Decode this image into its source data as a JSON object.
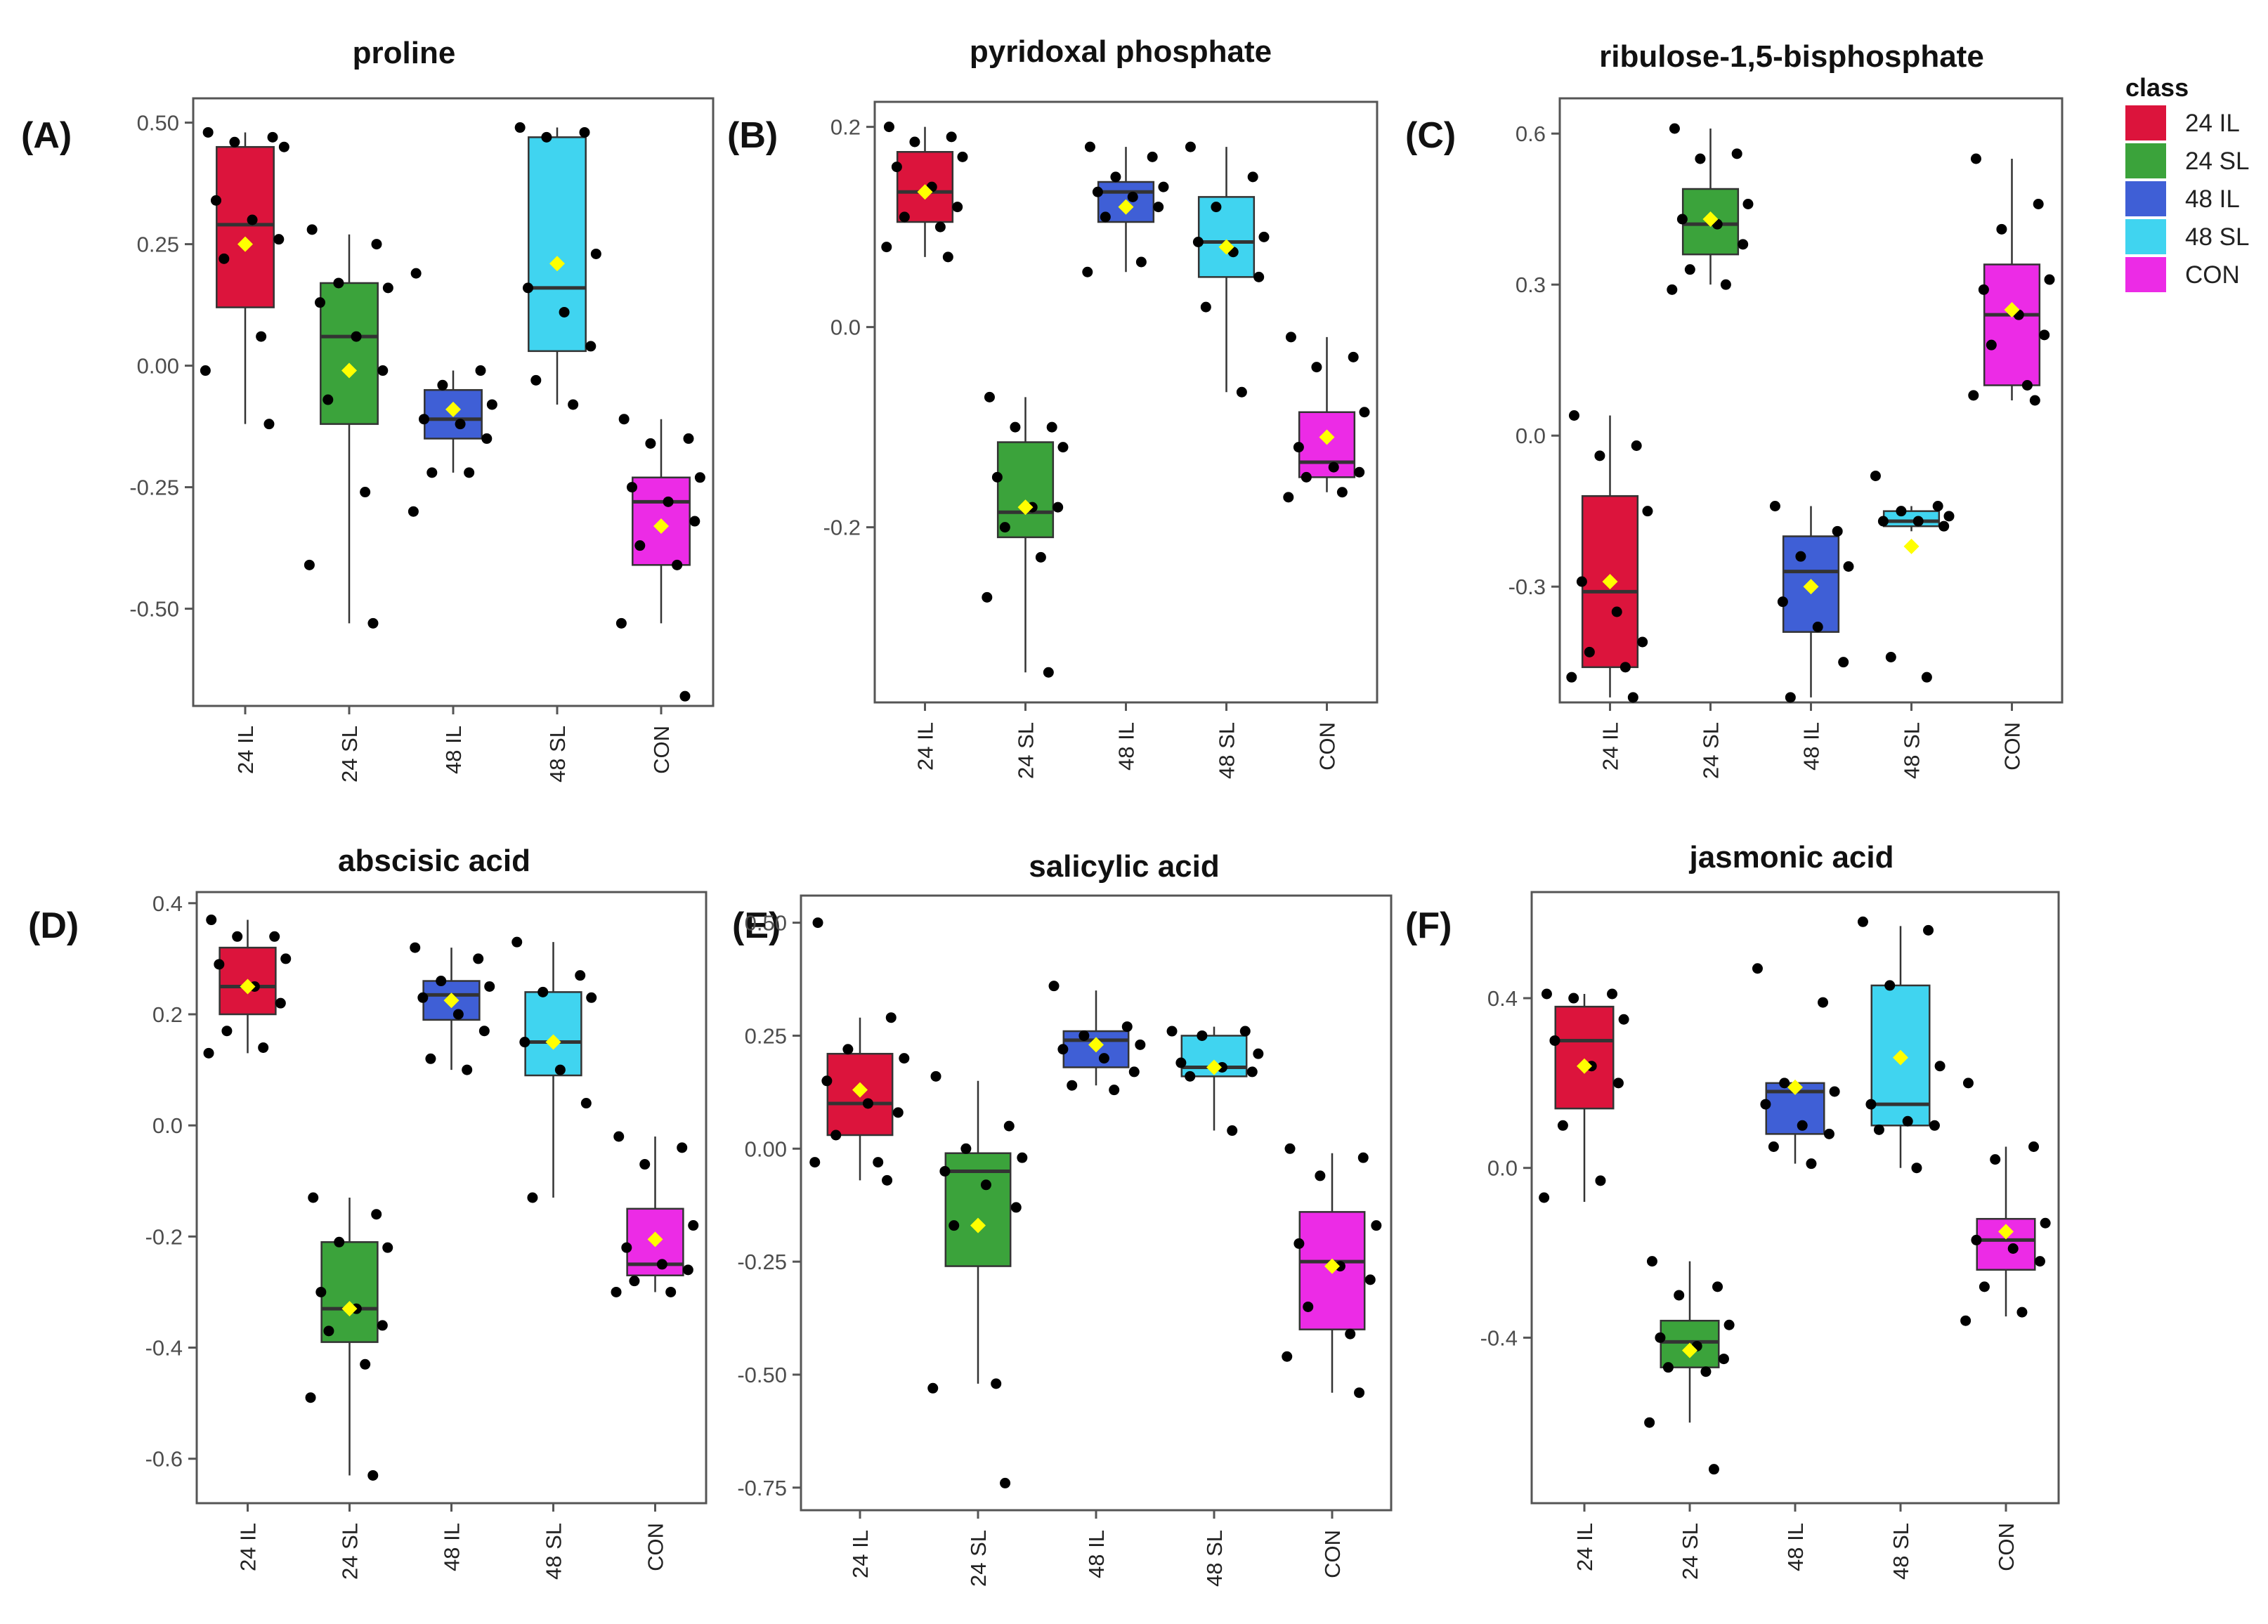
{
  "chart_data": [
    {
      "type": "boxplot",
      "id": "A",
      "letter": "(A)",
      "title": "proline",
      "categories": [
        "24 IL",
        "24 SL",
        "48 IL",
        "48 SL",
        "CON"
      ],
      "ylim": [
        -0.7,
        0.55
      ],
      "yticks": [
        0.5,
        0.25,
        0.0,
        -0.25,
        -0.5
      ],
      "ytick_labels": [
        "0.50",
        "0.25",
        "0.00",
        "-0.25",
        "-0.50"
      ],
      "boxes": [
        {
          "min": -0.12,
          "q1": 0.12,
          "median": 0.29,
          "q3": 0.45,
          "max": 0.48,
          "mean": 0.25,
          "points": [
            0.48,
            0.47,
            0.46,
            0.45,
            0.34,
            0.3,
            0.26,
            0.22,
            0.06,
            -0.01,
            -0.12
          ]
        },
        {
          "min": -0.53,
          "q1": -0.12,
          "median": 0.06,
          "q3": 0.17,
          "max": 0.27,
          "mean": -0.01,
          "points": [
            0.28,
            0.25,
            0.17,
            0.16,
            0.13,
            0.06,
            -0.01,
            -0.07,
            -0.26,
            -0.41,
            -0.53
          ]
        },
        {
          "min": -0.22,
          "q1": -0.15,
          "median": -0.11,
          "q3": -0.05,
          "max": -0.01,
          "mean": -0.09,
          "points": [
            0.19,
            -0.01,
            -0.04,
            -0.08,
            -0.11,
            -0.12,
            -0.15,
            -0.22,
            -0.22,
            -0.3
          ]
        },
        {
          "min": -0.08,
          "q1": 0.03,
          "median": 0.16,
          "q3": 0.47,
          "max": 0.49,
          "mean": 0.21,
          "points": [
            0.49,
            0.48,
            0.47,
            0.23,
            0.16,
            0.11,
            0.04,
            -0.03,
            -0.08
          ]
        },
        {
          "min": -0.53,
          "q1": -0.41,
          "median": -0.28,
          "q3": -0.23,
          "max": -0.11,
          "mean": -0.33,
          "points": [
            -0.11,
            -0.15,
            -0.16,
            -0.23,
            -0.25,
            -0.28,
            -0.32,
            -0.37,
            -0.41,
            -0.53,
            -0.68
          ]
        }
      ]
    },
    {
      "type": "boxplot",
      "id": "B",
      "letter": "(B)",
      "title": "pyridoxal phosphate",
      "categories": [
        "24 IL",
        "24 SL",
        "48 IL",
        "48 SL",
        "CON"
      ],
      "ylim": [
        -0.375,
        0.225
      ],
      "yticks": [
        0.2,
        0.0,
        -0.2
      ],
      "ytick_labels": [
        "0.2",
        "0.0",
        "-0.2"
      ],
      "boxes": [
        {
          "min": 0.07,
          "q1": 0.105,
          "median": 0.135,
          "q3": 0.175,
          "max": 0.2,
          "mean": 0.135,
          "points": [
            0.2,
            0.19,
            0.185,
            0.17,
            0.16,
            0.14,
            0.12,
            0.11,
            0.1,
            0.08,
            0.07
          ]
        },
        {
          "min": -0.345,
          "q1": -0.21,
          "median": -0.185,
          "q3": -0.115,
          "max": -0.07,
          "mean": -0.18,
          "points": [
            -0.07,
            -0.1,
            -0.1,
            -0.12,
            -0.15,
            -0.18,
            -0.18,
            -0.2,
            -0.23,
            -0.27,
            -0.345
          ]
        },
        {
          "min": 0.055,
          "q1": 0.105,
          "median": 0.135,
          "q3": 0.145,
          "max": 0.18,
          "mean": 0.12,
          "points": [
            0.18,
            0.17,
            0.15,
            0.14,
            0.135,
            0.13,
            0.12,
            0.11,
            0.065,
            0.055
          ]
        },
        {
          "min": -0.065,
          "q1": 0.05,
          "median": 0.085,
          "q3": 0.13,
          "max": 0.18,
          "mean": 0.08,
          "points": [
            0.18,
            0.15,
            0.12,
            0.09,
            0.085,
            0.075,
            0.05,
            0.02,
            -0.065
          ]
        },
        {
          "min": -0.165,
          "q1": -0.15,
          "median": -0.135,
          "q3": -0.085,
          "max": -0.01,
          "mean": -0.11,
          "points": [
            -0.01,
            -0.03,
            -0.04,
            -0.085,
            -0.12,
            -0.14,
            -0.145,
            -0.15,
            -0.165,
            -0.17
          ]
        }
      ]
    },
    {
      "type": "boxplot",
      "id": "C",
      "letter": "(C)",
      "title": "ribulose-1,5-bisphosphate",
      "categories": [
        "24 IL",
        "24 SL",
        "48 IL",
        "48 SL",
        "CON"
      ],
      "ylim": [
        -0.53,
        0.67
      ],
      "yticks": [
        0.6,
        0.3,
        0.0,
        -0.3
      ],
      "ytick_labels": [
        "0.6",
        "0.3",
        "0.0",
        "-0.3"
      ],
      "boxes": [
        {
          "min": -0.52,
          "q1": -0.46,
          "median": -0.31,
          "q3": -0.12,
          "max": 0.04,
          "mean": -0.29,
          "points": [
            0.04,
            -0.02,
            -0.04,
            -0.15,
            -0.29,
            -0.35,
            -0.41,
            -0.43,
            -0.46,
            -0.48,
            -0.52
          ]
        },
        {
          "min": 0.3,
          "q1": 0.36,
          "median": 0.42,
          "q3": 0.49,
          "max": 0.61,
          "mean": 0.43,
          "points": [
            0.61,
            0.56,
            0.55,
            0.46,
            0.43,
            0.42,
            0.38,
            0.33,
            0.3,
            0.29
          ]
        },
        {
          "min": -0.52,
          "q1": -0.39,
          "median": -0.27,
          "q3": -0.2,
          "max": -0.14,
          "mean": -0.3,
          "points": [
            -0.14,
            -0.19,
            -0.24,
            -0.26,
            -0.33,
            -0.38,
            -0.45,
            -0.52
          ]
        },
        {
          "min": -0.19,
          "q1": -0.18,
          "median": -0.17,
          "q3": -0.15,
          "max": -0.14,
          "mean": -0.22,
          "points": [
            -0.08,
            -0.14,
            -0.15,
            -0.16,
            -0.17,
            -0.17,
            -0.18,
            -0.44,
            -0.48
          ]
        },
        {
          "min": 0.07,
          "q1": 0.1,
          "median": 0.24,
          "q3": 0.34,
          "max": 0.55,
          "mean": 0.25,
          "points": [
            0.55,
            0.46,
            0.41,
            0.31,
            0.29,
            0.24,
            0.2,
            0.18,
            0.1,
            0.08,
            0.07
          ]
        }
      ]
    },
    {
      "type": "boxplot",
      "id": "D",
      "letter": "(D)",
      "title": "abscisic acid",
      "categories": [
        "24 IL",
        "24 SL",
        "48 IL",
        "48 SL",
        "CON"
      ],
      "ylim": [
        -0.68,
        0.42
      ],
      "yticks": [
        0.4,
        0.2,
        0.0,
        -0.2,
        -0.4,
        -0.6
      ],
      "ytick_labels": [
        "0.4",
        "0.2",
        "0.0",
        "-0.2",
        "-0.4",
        "-0.6"
      ],
      "boxes": [
        {
          "min": 0.13,
          "q1": 0.2,
          "median": 0.25,
          "q3": 0.32,
          "max": 0.37,
          "mean": 0.25,
          "points": [
            0.37,
            0.34,
            0.34,
            0.3,
            0.29,
            0.25,
            0.22,
            0.17,
            0.14,
            0.13
          ]
        },
        {
          "min": -0.63,
          "q1": -0.39,
          "median": -0.33,
          "q3": -0.21,
          "max": -0.13,
          "mean": -0.33,
          "points": [
            -0.13,
            -0.16,
            -0.21,
            -0.22,
            -0.3,
            -0.33,
            -0.36,
            -0.37,
            -0.43,
            -0.49,
            -0.63
          ]
        },
        {
          "min": 0.1,
          "q1": 0.19,
          "median": 0.235,
          "q3": 0.26,
          "max": 0.32,
          "mean": 0.225,
          "points": [
            0.32,
            0.3,
            0.26,
            0.25,
            0.23,
            0.2,
            0.17,
            0.12,
            0.1
          ]
        },
        {
          "min": -0.13,
          "q1": 0.09,
          "median": 0.15,
          "q3": 0.24,
          "max": 0.33,
          "mean": 0.15,
          "points": [
            0.33,
            0.27,
            0.24,
            0.23,
            0.15,
            0.1,
            0.04,
            -0.13
          ]
        },
        {
          "min": -0.3,
          "q1": -0.27,
          "median": -0.25,
          "q3": -0.15,
          "max": -0.02,
          "mean": -0.205,
          "points": [
            -0.02,
            -0.04,
            -0.07,
            -0.18,
            -0.22,
            -0.25,
            -0.26,
            -0.28,
            -0.3,
            -0.3
          ]
        }
      ]
    },
    {
      "type": "boxplot",
      "id": "E",
      "letter": "(E)",
      "title": "salicylic acid",
      "categories": [
        "24 IL",
        "24 SL",
        "48 IL",
        "48 SL",
        "CON"
      ],
      "ylim": [
        -0.8,
        0.56
      ],
      "yticks": [
        0.5,
        0.25,
        0.0,
        -0.25,
        -0.5,
        -0.75
      ],
      "ytick_labels": [
        "0.50",
        "0.25",
        "0.00",
        "-0.25",
        "-0.50",
        "-0.75"
      ],
      "boxes": [
        {
          "min": -0.07,
          "q1": 0.03,
          "median": 0.1,
          "q3": 0.21,
          "max": 0.29,
          "mean": 0.13,
          "points": [
            0.5,
            0.29,
            0.22,
            0.2,
            0.15,
            0.1,
            0.08,
            0.03,
            -0.03,
            -0.03,
            -0.07
          ]
        },
        {
          "min": -0.52,
          "q1": -0.26,
          "median": -0.05,
          "q3": -0.01,
          "max": 0.15,
          "mean": -0.17,
          "points": [
            0.16,
            0.05,
            0.0,
            -0.02,
            -0.05,
            -0.08,
            -0.13,
            -0.17,
            -0.52,
            -0.53,
            -0.74
          ]
        },
        {
          "min": 0.14,
          "q1": 0.18,
          "median": 0.24,
          "q3": 0.26,
          "max": 0.35,
          "mean": 0.23,
          "points": [
            0.36,
            0.27,
            0.25,
            0.23,
            0.22,
            0.2,
            0.17,
            0.14,
            0.13
          ]
        },
        {
          "min": 0.04,
          "q1": 0.16,
          "median": 0.18,
          "q3": 0.25,
          "max": 0.27,
          "mean": 0.18,
          "points": [
            0.26,
            0.26,
            0.25,
            0.21,
            0.19,
            0.18,
            0.17,
            0.16,
            0.04
          ]
        },
        {
          "min": -0.54,
          "q1": -0.4,
          "median": -0.25,
          "q3": -0.14,
          "max": -0.01,
          "mean": -0.26,
          "points": [
            0.0,
            -0.02,
            -0.06,
            -0.17,
            -0.21,
            -0.26,
            -0.29,
            -0.35,
            -0.41,
            -0.46,
            -0.54
          ]
        }
      ]
    },
    {
      "type": "boxplot",
      "id": "F",
      "letter": "(F)",
      "title": "jasmonic acid",
      "categories": [
        "24 IL",
        "24 SL",
        "48 IL",
        "48 SL",
        "CON"
      ],
      "ylim": [
        -0.79,
        0.65
      ],
      "yticks": [
        0.4,
        0.0,
        -0.4
      ],
      "ytick_labels": [
        "0.4",
        "0.0",
        "-0.4"
      ],
      "boxes": [
        {
          "min": -0.08,
          "q1": 0.14,
          "median": 0.3,
          "q3": 0.38,
          "max": 0.41,
          "mean": 0.24,
          "points": [
            0.41,
            0.41,
            0.4,
            0.35,
            0.3,
            0.24,
            0.2,
            0.1,
            -0.03,
            -0.07
          ]
        },
        {
          "min": -0.6,
          "q1": -0.47,
          "median": -0.41,
          "q3": -0.36,
          "max": -0.22,
          "mean": -0.43,
          "points": [
            -0.22,
            -0.28,
            -0.3,
            -0.37,
            -0.4,
            -0.42,
            -0.45,
            -0.47,
            -0.48,
            -0.6,
            -0.71
          ]
        },
        {
          "min": 0.01,
          "q1": 0.08,
          "median": 0.18,
          "q3": 0.2,
          "max": 0.2,
          "mean": 0.19,
          "points": [
            0.47,
            0.39,
            0.2,
            0.18,
            0.15,
            0.1,
            0.08,
            0.05,
            0.01
          ]
        },
        {
          "min": 0.0,
          "q1": 0.1,
          "median": 0.15,
          "q3": 0.43,
          "max": 0.57,
          "mean": 0.26,
          "points": [
            0.58,
            0.56,
            0.43,
            0.24,
            0.15,
            0.11,
            0.1,
            0.09,
            0.0
          ]
        },
        {
          "min": -0.35,
          "q1": -0.24,
          "median": -0.17,
          "q3": -0.12,
          "max": 0.05,
          "mean": -0.15,
          "points": [
            0.2,
            0.05,
            0.02,
            -0.13,
            -0.17,
            -0.19,
            -0.22,
            -0.28,
            -0.34,
            -0.36
          ]
        }
      ]
    }
  ],
  "legend": {
    "title": "class",
    "entries": [
      {
        "label": "24 IL",
        "color": "#DC143C"
      },
      {
        "label": "24 SL",
        "color": "#3BA33B"
      },
      {
        "label": "48 IL",
        "color": "#3F5FD6"
      },
      {
        "label": "48 SL",
        "color": "#40D4F0"
      },
      {
        "label": "CON",
        "color": "#EC2BE6"
      }
    ]
  },
  "colors": {
    "box_fill": [
      "#DC143C",
      "#3BA33B",
      "#3F5FD6",
      "#40D4F0",
      "#EC2BE6"
    ],
    "mean_marker": "#FFFF00",
    "points": "#000000",
    "axis": "#555555"
  }
}
